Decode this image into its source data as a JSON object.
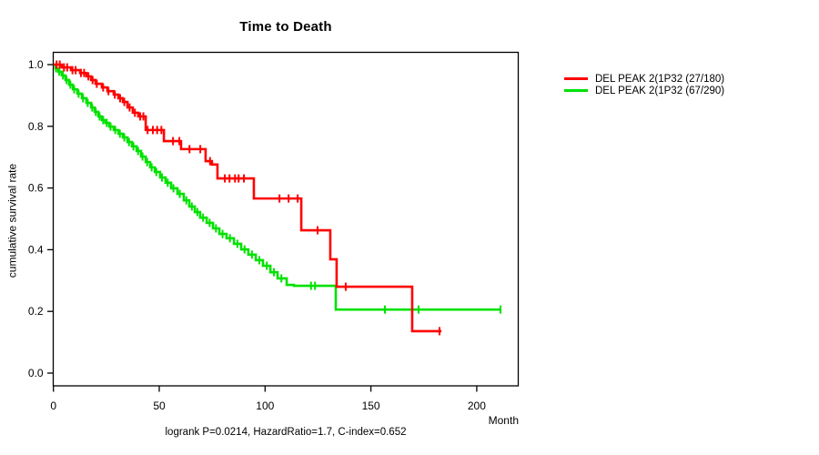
{
  "chart_data": {
    "type": "line",
    "subtype": "kaplan-meier-step-curves",
    "title": "Time to Death",
    "xlabel": "Month",
    "ylabel": "cumulative survival rate",
    "annotation": "logrank P=0.0214, HazardRatio=1.7, C-index=0.652",
    "x_ticks": [
      0,
      50,
      100,
      150,
      200
    ],
    "y_ticks": [
      "0.0",
      "0.2",
      "0.4",
      "0.6",
      "0.8",
      "1.0"
    ],
    "xlim": [
      0,
      219
    ],
    "ylim": [
      0.0,
      1.0
    ],
    "grid": "off",
    "legend_position": "right-outside",
    "frame_color": "#000000",
    "series": [
      {
        "name": "DEL PEAK 2(1P32 (67/290)",
        "color": "#00e100",
        "steps": [
          [
            0,
            1.0
          ],
          [
            1,
            0.988
          ],
          [
            2.3,
            0.977
          ],
          [
            4,
            0.965
          ],
          [
            5.7,
            0.95
          ],
          [
            7.4,
            0.935
          ],
          [
            9.2,
            0.92
          ],
          [
            11.3,
            0.906
          ],
          [
            13.5,
            0.891
          ],
          [
            15.6,
            0.876
          ],
          [
            17.8,
            0.861
          ],
          [
            19.5,
            0.847
          ],
          [
            21.2,
            0.832
          ],
          [
            22.9,
            0.82
          ],
          [
            24.6,
            0.811
          ],
          [
            26.4,
            0.799
          ],
          [
            28.5,
            0.788
          ],
          [
            30.7,
            0.776
          ],
          [
            32.8,
            0.764
          ],
          [
            35,
            0.749
          ],
          [
            37.1,
            0.735
          ],
          [
            39.3,
            0.72
          ],
          [
            41.4,
            0.702
          ],
          [
            43.6,
            0.684
          ],
          [
            45.7,
            0.667
          ],
          [
            47.9,
            0.652
          ],
          [
            50.4,
            0.634
          ],
          [
            53,
            0.617
          ],
          [
            55.6,
            0.599
          ],
          [
            58.6,
            0.581
          ],
          [
            61.6,
            0.56
          ],
          [
            64.2,
            0.54
          ],
          [
            66.8,
            0.522
          ],
          [
            69.3,
            0.504
          ],
          [
            72.4,
            0.487
          ],
          [
            75.4,
            0.469
          ],
          [
            78.4,
            0.451
          ],
          [
            81.8,
            0.437
          ],
          [
            85.3,
            0.419
          ],
          [
            88.7,
            0.401
          ],
          [
            92.1,
            0.384
          ],
          [
            95.6,
            0.366
          ],
          [
            99,
            0.348
          ],
          [
            102.5,
            0.327
          ],
          [
            105.9,
            0.307
          ],
          [
            110.2,
            0.286
          ],
          [
            113.6,
            0.283
          ],
          [
            133.4,
            0.206
          ]
        ],
        "end_month": 211.2,
        "censor_months": [
          1.2,
          2.8,
          4.5,
          6.2,
          8,
          9.8,
          11.9,
          14,
          16.2,
          18.3,
          20,
          21.8,
          23.5,
          25.2,
          27,
          29.2,
          31.4,
          33.5,
          35.7,
          37.8,
          40,
          42.1,
          44.3,
          46.4,
          48.6,
          51.3,
          54,
          56.7,
          59.7,
          62.8,
          65.4,
          68,
          70.7,
          73.8,
          76.8,
          79.9,
          83.4,
          86.9,
          90.3,
          93.8,
          97.3,
          100.8,
          104.2,
          107.7,
          121.7,
          123.6,
          156.6,
          172.5,
          211.2
        ]
      },
      {
        "name": "DEL PEAK 2(1P32 (27/180)",
        "color": "#ff0000",
        "steps": [
          [
            0,
            1.0
          ],
          [
            4,
            0.991
          ],
          [
            8.3,
            0.982
          ],
          [
            12.6,
            0.973
          ],
          [
            15.6,
            0.962
          ],
          [
            17.8,
            0.95
          ],
          [
            19.9,
            0.938
          ],
          [
            22.9,
            0.926
          ],
          [
            25.5,
            0.914
          ],
          [
            28.5,
            0.903
          ],
          [
            30.7,
            0.891
          ],
          [
            32.8,
            0.879
          ],
          [
            35,
            0.861
          ],
          [
            37.5,
            0.844
          ],
          [
            40.1,
            0.832
          ],
          [
            43.6,
            0.788
          ],
          [
            52.2,
            0.752
          ],
          [
            60.3,
            0.726
          ],
          [
            71.9,
            0.687
          ],
          [
            74.9,
            0.676
          ],
          [
            77.5,
            0.631
          ],
          [
            94.7,
            0.566
          ],
          [
            117.1,
            0.463
          ],
          [
            130.8,
            0.369
          ],
          [
            133.8,
            0.28
          ],
          [
            169.5,
            0.136
          ]
        ],
        "end_month": 183.3,
        "censor_months": [
          1.5,
          3,
          5,
          6.5,
          9,
          10.5,
          13,
          14.5,
          16.5,
          18.5,
          20.5,
          23.5,
          26,
          29,
          31.5,
          33.5,
          36,
          38.5,
          41,
          42.5,
          44.5,
          47,
          49,
          51,
          56.5,
          59.5,
          64.3,
          69.4,
          74,
          81,
          83.2,
          85.8,
          87.5,
          90,
          106.8,
          111.1,
          115.4,
          124.8,
          138.1,
          182.4
        ]
      }
    ],
    "legend_order": [
      "DEL PEAK 2(1P32 (27/180)",
      "DEL PEAK 2(1P32 (67/290)"
    ]
  }
}
